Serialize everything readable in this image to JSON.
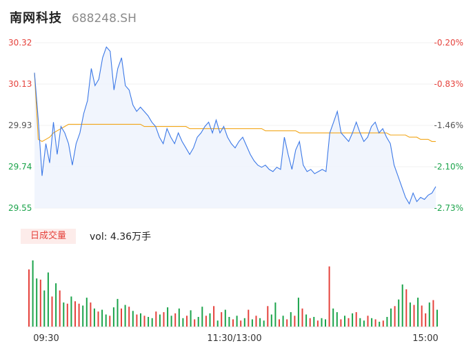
{
  "header": {
    "stock_name": "南网科技",
    "stock_code": "688248.SH"
  },
  "volume_panel": {
    "tag": "日成交量",
    "vol_label": "vol: 4.36万手"
  },
  "colors": {
    "price_line": "#3b78e7",
    "avg_line": "#f2a516",
    "up": "#e5413b",
    "down": "#1aa34a",
    "area": "#eef3fc"
  },
  "chart_data": {
    "type": "line",
    "title": "",
    "price_axis": {
      "ylim": [
        29.55,
        30.32
      ],
      "tick_labels": [
        "30.32",
        "30.13",
        "29.93",
        "29.74",
        "29.55"
      ]
    },
    "pct_axis": {
      "tick_labels": [
        "-0.20%",
        "-0.83%",
        "-1.46%",
        "-2.10%",
        "-2.73%"
      ]
    },
    "x_tick_labels": [
      "09:30",
      "11:30/13:00",
      "15:00"
    ],
    "series": [
      {
        "key": "price",
        "values": [
          30.18,
          29.96,
          29.7,
          29.85,
          29.76,
          29.95,
          29.8,
          29.93,
          29.9,
          29.85,
          29.75,
          29.85,
          29.9,
          29.99,
          30.05,
          30.2,
          30.12,
          30.15,
          30.25,
          30.3,
          30.28,
          30.1,
          30.2,
          30.25,
          30.12,
          30.1,
          30.03,
          30.0,
          30.02,
          30.0,
          29.98,
          29.95,
          29.93,
          29.88,
          29.85,
          29.92,
          29.88,
          29.85,
          29.9,
          29.86,
          29.83,
          29.8,
          29.83,
          29.88,
          29.9,
          29.93,
          29.95,
          29.9,
          29.96,
          29.9,
          29.93,
          29.88,
          29.85,
          29.83,
          29.86,
          29.88,
          29.84,
          29.8,
          29.77,
          29.75,
          29.74,
          29.75,
          29.73,
          29.72,
          29.74,
          29.73,
          29.88,
          29.8,
          29.73,
          29.82,
          29.86,
          29.75,
          29.72,
          29.73,
          29.71,
          29.72,
          29.73,
          29.72,
          29.9,
          29.95,
          30.0,
          29.9,
          29.88,
          29.86,
          29.9,
          29.95,
          29.9,
          29.86,
          29.88,
          29.93,
          29.95,
          29.9,
          29.92,
          29.88,
          29.85,
          29.75,
          29.7,
          29.65,
          29.6,
          29.57,
          29.62,
          29.58,
          29.6,
          29.59,
          29.61,
          29.62,
          29.65
        ]
      },
      {
        "key": "average",
        "values": [
          30.18,
          29.87,
          29.86,
          29.87,
          29.88,
          29.9,
          29.91,
          29.92,
          29.93,
          29.94,
          29.94,
          29.94,
          29.94,
          29.94,
          29.94,
          29.94,
          29.94,
          29.94,
          29.94,
          29.94,
          29.94,
          29.94,
          29.94,
          29.94,
          29.94,
          29.94,
          29.94,
          29.94,
          29.94,
          29.93,
          29.93,
          29.93,
          29.93,
          29.93,
          29.93,
          29.93,
          29.93,
          29.93,
          29.93,
          29.93,
          29.93,
          29.92,
          29.92,
          29.92,
          29.92,
          29.92,
          29.92,
          29.92,
          29.92,
          29.92,
          29.92,
          29.92,
          29.92,
          29.92,
          29.92,
          29.92,
          29.92,
          29.92,
          29.92,
          29.92,
          29.92,
          29.91,
          29.91,
          29.91,
          29.91,
          29.91,
          29.91,
          29.91,
          29.91,
          29.91,
          29.9,
          29.9,
          29.9,
          29.9,
          29.9,
          29.9,
          29.9,
          29.9,
          29.9,
          29.9,
          29.9,
          29.9,
          29.9,
          29.9,
          29.9,
          29.9,
          29.9,
          29.9,
          29.9,
          29.9,
          29.9,
          29.9,
          29.9,
          29.9,
          29.89,
          29.89,
          29.89,
          29.89,
          29.89,
          29.88,
          29.88,
          29.88,
          29.87,
          29.87,
          29.87,
          29.86,
          29.86
        ]
      }
    ],
    "volume": {
      "values": [
        95,
        110,
        80,
        78,
        60,
        90,
        50,
        72,
        60,
        40,
        38,
        50,
        42,
        38,
        35,
        48,
        40,
        30,
        25,
        28,
        20,
        18,
        32,
        46,
        30,
        36,
        33,
        26,
        20,
        22,
        18,
        16,
        14,
        25,
        20,
        24,
        32,
        18,
        22,
        30,
        14,
        18,
        27,
        12,
        16,
        33,
        18,
        22,
        34,
        10,
        24,
        28,
        16,
        12,
        18,
        10,
        14,
        28,
        12,
        18,
        14,
        10,
        34,
        20,
        40,
        12,
        18,
        12,
        24,
        18,
        48,
        30,
        20,
        14,
        16,
        10,
        14,
        12,
        100,
        30,
        24,
        12,
        18,
        14,
        22,
        24,
        14,
        10,
        18,
        14,
        12,
        8,
        10,
        16,
        30,
        34,
        45,
        70,
        62,
        40,
        36,
        48,
        35,
        22,
        40,
        44,
        28
      ],
      "directions": [
        "up",
        "down",
        "down",
        "up",
        "down",
        "down",
        "up",
        "down",
        "up",
        "down",
        "up",
        "down",
        "up",
        "up",
        "down",
        "down",
        "up",
        "down",
        "up",
        "down",
        "down",
        "up",
        "down",
        "down",
        "up",
        "down",
        "up",
        "down",
        "up",
        "down",
        "up",
        "down",
        "down",
        "up",
        "down",
        "up",
        "down",
        "down",
        "up",
        "down",
        "down",
        "up",
        "down",
        "up",
        "down",
        "down",
        "up",
        "down",
        "up",
        "down",
        "up",
        "down",
        "down",
        "up",
        "down",
        "up",
        "down",
        "up",
        "down",
        "up",
        "down",
        "down",
        "up",
        "down",
        "down",
        "up",
        "down",
        "up",
        "down",
        "up",
        "down",
        "up",
        "down",
        "up",
        "down",
        "up",
        "down",
        "down",
        "up",
        "down",
        "down",
        "up",
        "down",
        "up",
        "down",
        "up",
        "down",
        "down",
        "up",
        "down",
        "up",
        "down",
        "up",
        "down",
        "down",
        "up",
        "down",
        "down",
        "up",
        "down",
        "up",
        "down",
        "up",
        "up",
        "down",
        "up",
        "down"
      ]
    }
  }
}
